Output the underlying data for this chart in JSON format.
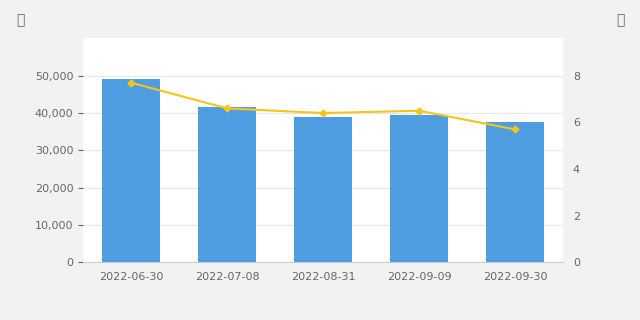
{
  "categories": [
    "2022-06-30",
    "2022-07-08",
    "2022-08-31",
    "2022-09-09",
    "2022-09-30"
  ],
  "bar_values": [
    49100,
    41500,
    39000,
    39500,
    37500
  ],
  "line_values": [
    7.7,
    6.6,
    6.4,
    6.5,
    5.7
  ],
  "bar_color": "#4d9de0",
  "line_color": "#f5c518",
  "bar_ylim": [
    0,
    60000
  ],
  "bar_yticks": [
    0,
    10000,
    20000,
    30000,
    40000,
    50000
  ],
  "line_ylim": [
    0,
    9.6
  ],
  "line_yticks": [
    0,
    2,
    4,
    6,
    8
  ],
  "label_left": "户",
  "label_right": "元",
  "bg_color": "#f2f2f2",
  "plot_bg_color": "#ffffff",
  "marker": "D",
  "marker_size": 3.5,
  "line_width": 1.5,
  "tick_fontsize": 8,
  "label_fontsize": 10
}
